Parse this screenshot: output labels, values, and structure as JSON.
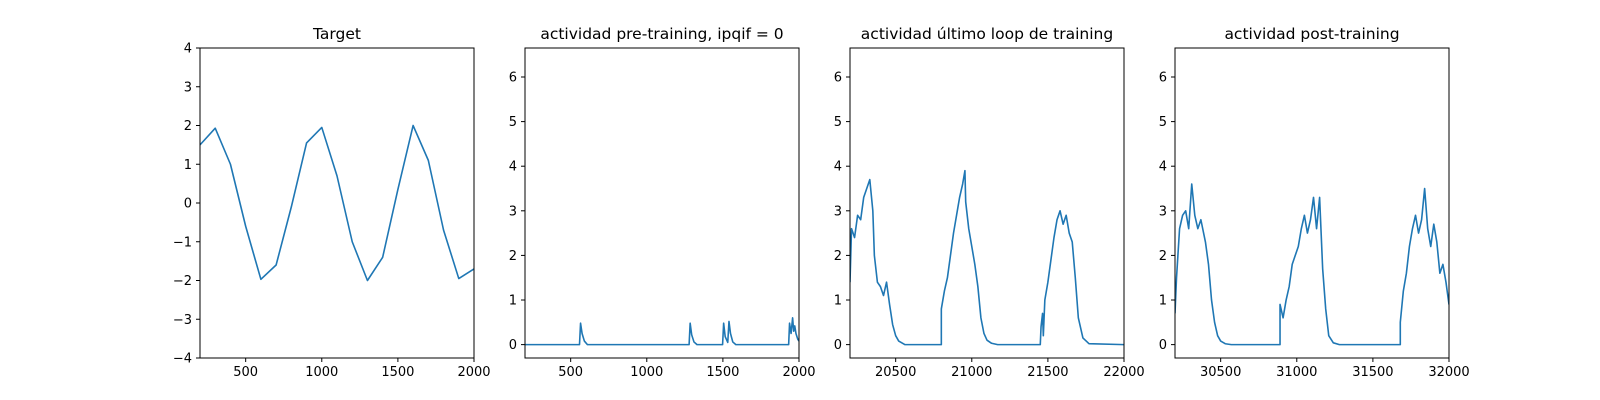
{
  "chart_data": [
    {
      "type": "line",
      "title": "Target",
      "xlim": [
        200,
        2000
      ],
      "ylim": [
        -4,
        4
      ],
      "xticks": [
        500,
        1000,
        1500,
        2000
      ],
      "yticks": [
        -4,
        -3,
        -2,
        -1,
        0,
        1,
        2,
        3,
        4
      ],
      "xlabel": "",
      "ylabel": "",
      "line_color": "#1f77b4",
      "series": [
        {
          "x": [
            200,
            300,
            400,
            500,
            600,
            700,
            800,
            900,
            1000,
            1100,
            1200,
            1300,
            1400,
            1500,
            1600,
            1700,
            1800,
            1900,
            2000
          ],
          "y": [
            1.5,
            1.93,
            1.0,
            -0.6,
            -1.97,
            -1.6,
            -0.1,
            1.55,
            1.95,
            0.7,
            -1.0,
            -2.0,
            -1.4,
            0.35,
            2.0,
            1.1,
            -0.7,
            -1.95,
            -1.7
          ]
        }
      ]
    },
    {
      "type": "line",
      "title": "actividad pre-training, ipqif = 0",
      "xlim": [
        200,
        2000
      ],
      "ylim": [
        -0.3,
        6.65
      ],
      "xticks": [
        500,
        1000,
        1500,
        2000
      ],
      "yticks": [
        0,
        1,
        2,
        3,
        4,
        5,
        6
      ],
      "xlabel": "",
      "ylabel": "",
      "line_color": "#1f77b4",
      "series": [
        {
          "x": [
            200,
            558,
            565,
            575,
            590,
            610,
            1278,
            1285,
            1295,
            1310,
            1330,
            1498,
            1505,
            1515,
            1532,
            1540,
            1550,
            1565,
            1585,
            1932,
            1938,
            1948,
            1958,
            1965,
            1972,
            1980,
            1992,
            2000
          ],
          "y": [
            0,
            0,
            0.48,
            0.25,
            0.08,
            0,
            0,
            0.48,
            0.22,
            0.06,
            0,
            0,
            0.48,
            0.18,
            0.05,
            0.52,
            0.25,
            0.06,
            0,
            0,
            0.48,
            0.25,
            0.6,
            0.3,
            0.42,
            0.25,
            0.12,
            0.08
          ]
        }
      ]
    },
    {
      "type": "line",
      "title": "actividad último loop de training",
      "xlim": [
        20200,
        22000
      ],
      "ylim": [
        -0.3,
        6.65
      ],
      "xticks": [
        20500,
        21000,
        21500,
        22000
      ],
      "yticks": [
        0,
        1,
        2,
        3,
        4,
        5,
        6
      ],
      "xlabel": "",
      "ylabel": "",
      "line_color": "#1f77b4",
      "series": [
        {
          "x": [
            20200,
            20210,
            20230,
            20250,
            20270,
            20290,
            20310,
            20330,
            20350,
            20360,
            20380,
            20400,
            20420,
            20440,
            20460,
            20480,
            20500,
            20520,
            20560,
            20800,
            20800,
            20820,
            20840,
            20860,
            20880,
            20900,
            20920,
            20940,
            20955,
            20960,
            20980,
            21000,
            21020,
            21040,
            21060,
            21080,
            21100,
            21130,
            21170,
            21450,
            21455,
            21465,
            21470,
            21480,
            21500,
            21520,
            21540,
            21560,
            21580,
            21600,
            21620,
            21640,
            21660,
            21680,
            21700,
            21730,
            21770,
            22000
          ],
          "y": [
            1.4,
            2.6,
            2.4,
            2.9,
            2.8,
            3.3,
            3.5,
            3.7,
            3.0,
            2.0,
            1.4,
            1.3,
            1.1,
            1.4,
            0.9,
            0.45,
            0.2,
            0.08,
            0,
            0,
            0.8,
            1.2,
            1.5,
            2.0,
            2.5,
            2.9,
            3.3,
            3.6,
            3.9,
            3.2,
            2.6,
            2.2,
            1.8,
            1.3,
            0.6,
            0.25,
            0.1,
            0.03,
            0,
            0,
            0.4,
            0.7,
            0.2,
            1.0,
            1.4,
            1.9,
            2.4,
            2.8,
            3.0,
            2.7,
            2.9,
            2.5,
            2.3,
            1.5,
            0.6,
            0.15,
            0.02,
            0
          ]
        }
      ]
    },
    {
      "type": "line",
      "title": "actividad post-training",
      "xlim": [
        30200,
        32000
      ],
      "ylim": [
        -0.3,
        6.65
      ],
      "xticks": [
        30500,
        31000,
        31500,
        32000
      ],
      "yticks": [
        0,
        1,
        2,
        3,
        4,
        5,
        6
      ],
      "xlabel": "",
      "ylabel": "",
      "line_color": "#1f77b4",
      "series": [
        {
          "x": [
            30200,
            30210,
            30230,
            30250,
            30270,
            30290,
            30310,
            30330,
            30350,
            30370,
            30400,
            30420,
            30440,
            30460,
            30480,
            30500,
            30530,
            30570,
            30890,
            30890,
            30910,
            30930,
            30950,
            30970,
            30990,
            31010,
            31030,
            31050,
            31070,
            31090,
            31110,
            31130,
            31150,
            31170,
            31190,
            31210,
            31240,
            31280,
            31680,
            31680,
            31700,
            31720,
            31740,
            31760,
            31780,
            31800,
            31820,
            31840,
            31860,
            31880,
            31900,
            31920,
            31940,
            31960,
            31980,
            32000
          ],
          "y": [
            0.7,
            1.5,
            2.6,
            2.9,
            3.0,
            2.6,
            3.6,
            2.9,
            2.6,
            2.8,
            2.3,
            1.8,
            1.0,
            0.5,
            0.2,
            0.08,
            0.02,
            0,
            0,
            0.9,
            0.6,
            1.0,
            1.3,
            1.8,
            2.0,
            2.2,
            2.6,
            2.9,
            2.5,
            2.8,
            3.3,
            2.6,
            3.3,
            1.7,
            0.8,
            0.2,
            0.04,
            0,
            0,
            0.5,
            1.2,
            1.6,
            2.2,
            2.6,
            2.9,
            2.5,
            2.8,
            3.5,
            2.6,
            2.2,
            2.7,
            2.3,
            1.6,
            1.8,
            1.4,
            0.9
          ]
        }
      ]
    }
  ]
}
